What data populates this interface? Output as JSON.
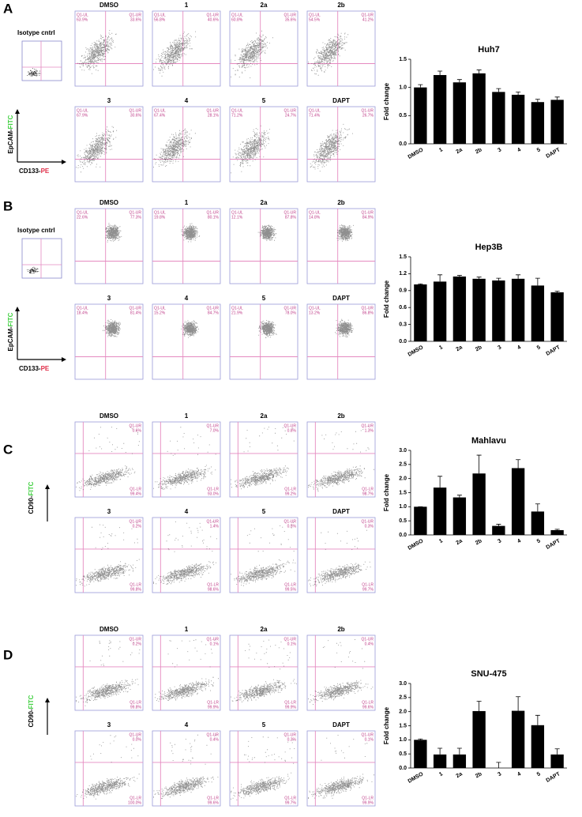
{
  "flow_panels": [
    {
      "letter": "A",
      "isotype": "Isotype cntrl",
      "y_axis": [
        "EpCAM-",
        "FITC"
      ],
      "x_axis": [
        "CD133-",
        "PE"
      ],
      "plots": [
        {
          "name": "DMSO",
          "quadrants": [
            {
              "label": "Q1-UL",
              "pct": "63.9%"
            },
            {
              "label": "Q1-UR",
              "pct": "33.6%"
            }
          ]
        },
        {
          "name": "1",
          "quadrants": [
            {
              "label": "Q1-UL",
              "pct": "56.8%"
            },
            {
              "label": "Q1-UR",
              "pct": "40.6%"
            }
          ]
        },
        {
          "name": "2a",
          "quadrants": [
            {
              "label": "Q1-UL",
              "pct": "60.8%"
            },
            {
              "label": "Q1-UR",
              "pct": "35.6%"
            }
          ]
        },
        {
          "name": "2b",
          "quadrants": [
            {
              "label": "Q1-UL",
              "pct": "54.5%"
            },
            {
              "label": "Q1-UR",
              "pct": "41.2%"
            }
          ]
        },
        {
          "name": "3",
          "quadrants": [
            {
              "label": "Q1-UL",
              "pct": "67.9%"
            },
            {
              "label": "Q1-UR",
              "pct": "30.6%"
            }
          ]
        },
        {
          "name": "4",
          "quadrants": [
            {
              "label": "Q1-UL",
              "pct": "67.4%"
            },
            {
              "label": "Q1-UR",
              "pct": "28.1%"
            }
          ]
        },
        {
          "name": "5",
          "quadrants": [
            {
              "label": "Q1-UL",
              "pct": "71.2%"
            },
            {
              "label": "Q1-UR",
              "pct": "24.7%"
            }
          ]
        },
        {
          "name": "DAPT",
          "quadrants": [
            {
              "label": "Q1-UL",
              "pct": "71.4%"
            },
            {
              "label": "Q1-UR",
              "pct": "26.7%"
            }
          ]
        }
      ]
    },
    {
      "letter": "B",
      "isotype": "Isotype cntrl",
      "y_axis": [
        "EpCAM-",
        "FITC"
      ],
      "x_axis": [
        "CD133-",
        "PE"
      ],
      "plots": [
        {
          "name": "DMSO",
          "quadrants": [
            {
              "label": "Q1-UL",
              "pct": "22.6%"
            },
            {
              "label": "Q1-UR",
              "pct": "77.3%"
            }
          ]
        },
        {
          "name": "1",
          "quadrants": [
            {
              "label": "Q1-UL",
              "pct": "19.8%"
            },
            {
              "label": "Q1-UR",
              "pct": "80.1%"
            }
          ]
        },
        {
          "name": "2a",
          "quadrants": [
            {
              "label": "Q1-UL",
              "pct": "12.1%"
            },
            {
              "label": "Q1-UR",
              "pct": "87.8%"
            }
          ]
        },
        {
          "name": "2b",
          "quadrants": [
            {
              "label": "Q1-UL",
              "pct": "14.8%"
            },
            {
              "label": "Q1-UR",
              "pct": "84.9%"
            }
          ]
        },
        {
          "name": "3",
          "quadrants": [
            {
              "label": "Q1-UL",
              "pct": "18.4%"
            },
            {
              "label": "Q1-UR",
              "pct": "81.4%"
            }
          ]
        },
        {
          "name": "4",
          "quadrants": [
            {
              "label": "Q1-UL",
              "pct": "15.2%"
            },
            {
              "label": "Q1-UR",
              "pct": "84.7%"
            }
          ]
        },
        {
          "name": "5",
          "quadrants": [
            {
              "label": "Q1-UL",
              "pct": "21.9%"
            },
            {
              "label": "Q1-UR",
              "pct": "78.0%"
            }
          ]
        },
        {
          "name": "DAPT",
          "quadrants": [
            {
              "label": "Q1-UL",
              "pct": "13.2%"
            },
            {
              "label": "Q1-UR",
              "pct": "86.8%"
            }
          ]
        }
      ]
    },
    {
      "letter": "C",
      "y_axis": [
        "CD90-",
        "FITC"
      ],
      "plots": [
        {
          "name": "DMSO",
          "quadrants": [
            {
              "label": "Q1-UR",
              "pct": "0.6%"
            },
            {
              "label": "Q1-LR",
              "pct": "99.4%"
            }
          ]
        },
        {
          "name": "1",
          "quadrants": [
            {
              "label": "Q1-UR",
              "pct": "7.0%"
            },
            {
              "label": "Q1-LR",
              "pct": "93.0%"
            }
          ]
        },
        {
          "name": "2a",
          "quadrants": [
            {
              "label": "Q1-UR",
              "pct": "0.8%"
            },
            {
              "label": "Q1-LR",
              "pct": "99.2%"
            }
          ]
        },
        {
          "name": "2b",
          "quadrants": [
            {
              "label": "Q1-UR",
              "pct": "1.3%"
            },
            {
              "label": "Q1-LR",
              "pct": "98.7%"
            }
          ]
        },
        {
          "name": "3",
          "quadrants": [
            {
              "label": "Q1-UR",
              "pct": "0.2%"
            },
            {
              "label": "Q1-LR",
              "pct": "99.8%"
            }
          ]
        },
        {
          "name": "4",
          "quadrants": [
            {
              "label": "Q1-UR",
              "pct": "1.4%"
            },
            {
              "label": "Q1-LR",
              "pct": "98.6%"
            }
          ]
        },
        {
          "name": "5",
          "quadrants": [
            {
              "label": "Q1-UR",
              "pct": "0.5%"
            },
            {
              "label": "Q1-LR",
              "pct": "99.5%"
            }
          ]
        },
        {
          "name": "DAPT",
          "quadrants": [
            {
              "label": "Q1-UR",
              "pct": "0.3%"
            },
            {
              "label": "Q1-LR",
              "pct": "99.7%"
            }
          ]
        }
      ]
    },
    {
      "letter": "D",
      "y_axis": [
        "CD90-",
        "FITC"
      ],
      "plots": [
        {
          "name": "DMSO",
          "quadrants": [
            {
              "label": "Q1-UR",
              "pct": "0.2%"
            },
            {
              "label": "Q1-LR",
              "pct": "99.8%"
            }
          ]
        },
        {
          "name": "1",
          "quadrants": [
            {
              "label": "Q1-UR",
              "pct": "0.1%"
            },
            {
              "label": "Q1-LR",
              "pct": "99.9%"
            }
          ]
        },
        {
          "name": "2a",
          "quadrants": [
            {
              "label": "Q1-UR",
              "pct": "0.1%"
            },
            {
              "label": "Q1-LR",
              "pct": "99.9%"
            }
          ]
        },
        {
          "name": "2b",
          "quadrants": [
            {
              "label": "Q1-UR",
              "pct": "0.4%"
            },
            {
              "label": "Q1-LR",
              "pct": "99.6%"
            }
          ]
        },
        {
          "name": "3",
          "quadrants": [
            {
              "label": "Q1-UR",
              "pct": "0.0%"
            },
            {
              "label": "Q1-LR",
              "pct": "100.0%"
            }
          ]
        },
        {
          "name": "4",
          "quadrants": [
            {
              "label": "Q1-UR",
              "pct": "0.4%"
            },
            {
              "label": "Q1-LR",
              "pct": "99.6%"
            }
          ]
        },
        {
          "name": "5",
          "quadrants": [
            {
              "label": "Q1-UR",
              "pct": "0.3%"
            },
            {
              "label": "Q1-LR",
              "pct": "99.7%"
            }
          ]
        },
        {
          "name": "DAPT",
          "quadrants": [
            {
              "label": "Q1-UR",
              "pct": "0.1%"
            },
            {
              "label": "Q1-LR",
              "pct": "99.9%"
            }
          ]
        }
      ]
    }
  ],
  "chart_data": [
    {
      "type": "bar",
      "title": "Huh7",
      "y_label": "Fold change",
      "color": "#000000",
      "categories": [
        "DMSO",
        "1",
        "2a",
        "2b",
        "3",
        "4",
        "5",
        "DAPT"
      ],
      "values": [
        1.0,
        1.22,
        1.09,
        1.25,
        0.92,
        0.87,
        0.74,
        0.78
      ],
      "errors": [
        0.05,
        0.07,
        0.05,
        0.06,
        0.06,
        0.05,
        0.05,
        0.05
      ],
      "ylim": [
        0,
        1.5
      ],
      "yticks": [
        {
          "value": 0,
          "label": "0.0"
        },
        0.5,
        {
          "value": 1,
          "label": "1.0"
        },
        {
          "value": 1.5,
          "label": "1.5"
        }
      ]
    },
    {
      "type": "bar",
      "title": "Hep3B",
      "y_label": "Fold change",
      "color": "#000000",
      "categories": [
        "DMSO",
        "1",
        "2a",
        "2b",
        "3",
        "4",
        "5",
        "DAPT"
      ],
      "values": [
        1.01,
        1.06,
        1.15,
        1.11,
        1.08,
        1.11,
        0.99,
        0.87
      ],
      "errors": [
        0.01,
        0.12,
        0.02,
        0.03,
        0.04,
        0.07,
        0.13,
        0.02
      ],
      "ylim": [
        0,
        1.5
      ],
      "yticks": [
        {
          "value": 0,
          "label": "0.0"
        },
        0.3,
        0.6,
        0.9,
        1.2,
        1.5
      ]
    },
    {
      "type": "bar",
      "title": "Mahlavu",
      "y_label": "Fold change",
      "color": "#000000",
      "categories": [
        "DMSO",
        "1",
        "2a",
        "2b",
        "3",
        "4",
        "5",
        "DAPT"
      ],
      "values": [
        1.0,
        1.68,
        1.33,
        2.18,
        0.32,
        2.37,
        0.83,
        0.17
      ],
      "errors": [
        0,
        0.4,
        0.08,
        0.65,
        0.06,
        0.3,
        0.27,
        0.03
      ],
      "ylim": [
        0,
        3
      ],
      "yticks": [
        {
          "value": 0,
          "label": "0.0"
        },
        0.5,
        {
          "value": 1,
          "label": "1.0"
        },
        1.5,
        {
          "value": 2,
          "label": "2.0"
        },
        2.5,
        {
          "value": 3,
          "label": "3.0"
        }
      ]
    },
    {
      "type": "bar",
      "title": "SNU-475",
      "y_label": "Fold change",
      "color": "#000000",
      "categories": [
        "DMSO",
        "1",
        "2a",
        "2b",
        "3",
        "4",
        "5",
        "DAPT"
      ],
      "values": [
        1.0,
        0.48,
        0.48,
        2.02,
        0,
        2.03,
        1.52,
        0.48
      ],
      "errors": [
        0.03,
        0.22,
        0.22,
        0.35,
        0.2,
        0.5,
        0.35,
        0.2
      ],
      "ylim": [
        0,
        3
      ],
      "yticks": [
        {
          "value": 0,
          "label": "0.0"
        },
        0.5,
        {
          "value": 1,
          "label": "1.0"
        },
        1.5,
        {
          "value": 2,
          "label": "2.0"
        },
        2.5,
        {
          "value": 3,
          "label": "3.0"
        }
      ]
    }
  ]
}
